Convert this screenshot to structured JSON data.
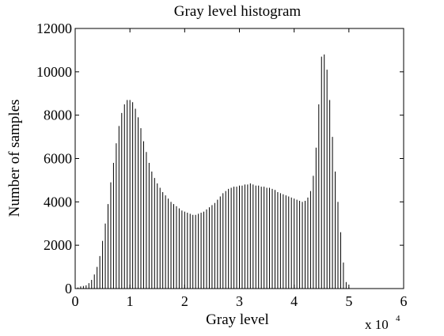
{
  "chart_data": {
    "type": "bar",
    "title": "Gray level histogram",
    "xlabel": "Gray level",
    "ylabel": "Number of samples",
    "x_multiplier": "x 10",
    "x_multiplier_exp": "4",
    "xlim": [
      0,
      6
    ],
    "ylim": [
      0,
      12000
    ],
    "xticks": [
      0,
      1,
      2,
      3,
      4,
      5,
      6
    ],
    "yticks": [
      0,
      2000,
      4000,
      6000,
      8000,
      10000,
      12000
    ],
    "grid": false,
    "bar_color": "#000000",
    "x": [
      0.0,
      0.05,
      0.1,
      0.15,
      0.2,
      0.25,
      0.3,
      0.35,
      0.4,
      0.45,
      0.5,
      0.55,
      0.6,
      0.65,
      0.7,
      0.75,
      0.8,
      0.85,
      0.9,
      0.95,
      1.0,
      1.05,
      1.1,
      1.15,
      1.2,
      1.25,
      1.3,
      1.35,
      1.4,
      1.45,
      1.5,
      1.55,
      1.6,
      1.65,
      1.7,
      1.75,
      1.8,
      1.85,
      1.9,
      1.95,
      2.0,
      2.05,
      2.1,
      2.15,
      2.2,
      2.25,
      2.3,
      2.35,
      2.4,
      2.45,
      2.5,
      2.55,
      2.6,
      2.65,
      2.7,
      2.75,
      2.8,
      2.85,
      2.9,
      2.95,
      3.0,
      3.05,
      3.1,
      3.15,
      3.2,
      3.25,
      3.3,
      3.35,
      3.4,
      3.45,
      3.5,
      3.55,
      3.6,
      3.65,
      3.7,
      3.75,
      3.8,
      3.85,
      3.9,
      3.95,
      4.0,
      4.05,
      4.1,
      4.15,
      4.2,
      4.25,
      4.3,
      4.35,
      4.4,
      4.45,
      4.5,
      4.55,
      4.6,
      4.65,
      4.7,
      4.75,
      4.8,
      4.85,
      4.9,
      4.95,
      5.0,
      5.05,
      5.1,
      5.15,
      5.2,
      5.25,
      5.3,
      5.35,
      5.4,
      5.45,
      5.5,
      5.55,
      5.6,
      5.65,
      5.7,
      5.75,
      5.8,
      5.85,
      5.9,
      5.95,
      6.0
    ],
    "values": [
      0,
      50,
      100,
      120,
      150,
      250,
      400,
      650,
      1000,
      1500,
      2200,
      3000,
      3900,
      4900,
      5800,
      6700,
      7500,
      8100,
      8500,
      8700,
      8700,
      8600,
      8300,
      7900,
      7400,
      6800,
      6300,
      5800,
      5400,
      5100,
      4850,
      4650,
      4450,
      4300,
      4150,
      4000,
      3900,
      3800,
      3700,
      3600,
      3550,
      3500,
      3450,
      3400,
      3400,
      3450,
      3500,
      3550,
      3650,
      3750,
      3850,
      3950,
      4100,
      4250,
      4400,
      4500,
      4600,
      4650,
      4700,
      4700,
      4750,
      4750,
      4800,
      4800,
      4850,
      4800,
      4750,
      4750,
      4700,
      4700,
      4650,
      4650,
      4600,
      4550,
      4450,
      4400,
      4350,
      4300,
      4250,
      4200,
      4150,
      4100,
      4050,
      4000,
      4050,
      4200,
      4500,
      5200,
      6500,
      8500,
      10700,
      10800,
      10100,
      8700,
      7000,
      5400,
      4000,
      2600,
      1200,
      300,
      50,
      0,
      0,
      0,
      0,
      0,
      0,
      0,
      0,
      0,
      0,
      0,
      0,
      0,
      0,
      0,
      0,
      0,
      0,
      0,
      0
    ]
  }
}
